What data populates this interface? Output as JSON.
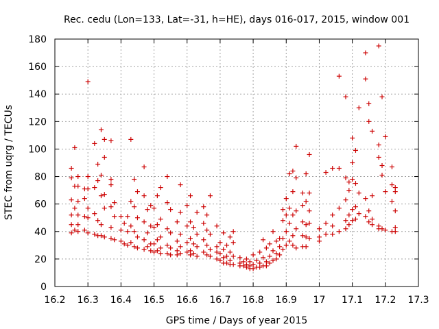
{
  "chart_data": {
    "type": "scatter",
    "title": "Rec. cedu (Lon=133, Lat=-31, h=HE), days 016-017, 2015, window 001",
    "xlabel": "GPS time / Days of year 2015",
    "ylabel": "STEC from uqrg / TECUs",
    "xlim": [
      16.2,
      17.3
    ],
    "ylim": [
      0,
      180
    ],
    "xticks": [
      "16.2",
      "16.3",
      "16.4",
      "16.5",
      "16.6",
      "16.7",
      "16.8",
      "16.9",
      "17",
      "17.1",
      "17.2",
      "17.3"
    ],
    "yticks": [
      "0",
      "20",
      "40",
      "60",
      "80",
      "100",
      "120",
      "140",
      "160",
      "180"
    ],
    "grid": true,
    "marker": "+",
    "color": "#cc0000",
    "series": [
      {
        "points": [
          [
            16.25,
            86
          ],
          [
            16.25,
            79
          ],
          [
            16.25,
            63
          ],
          [
            16.25,
            52
          ],
          [
            16.25,
            45
          ],
          [
            16.25,
            39
          ],
          [
            16.26,
            101
          ],
          [
            16.26,
            73
          ],
          [
            16.26,
            57
          ],
          [
            16.26,
            41
          ],
          [
            16.27,
            80
          ],
          [
            16.27,
            73
          ],
          [
            16.27,
            62
          ],
          [
            16.27,
            52
          ],
          [
            16.27,
            45
          ],
          [
            16.27,
            40
          ],
          [
            16.29,
            71
          ],
          [
            16.29,
            64
          ],
          [
            16.29,
            51
          ],
          [
            16.29,
            41
          ],
          [
            16.3,
            149
          ],
          [
            16.3,
            80
          ],
          [
            16.3,
            71
          ],
          [
            16.3,
            57
          ],
          [
            16.3,
            50
          ],
          [
            16.3,
            39
          ],
          [
            16.32,
            104
          ],
          [
            16.32,
            72
          ],
          [
            16.32,
            53
          ],
          [
            16.32,
            38
          ],
          [
            16.33,
            89
          ],
          [
            16.33,
            77
          ],
          [
            16.33,
            48
          ],
          [
            16.33,
            37
          ],
          [
            16.34,
            114
          ],
          [
            16.34,
            81
          ],
          [
            16.34,
            66
          ],
          [
            16.34,
            45
          ],
          [
            16.34,
            37
          ],
          [
            16.35,
            107
          ],
          [
            16.35,
            94
          ],
          [
            16.35,
            67
          ],
          [
            16.35,
            57
          ],
          [
            16.35,
            36
          ],
          [
            16.37,
            106
          ],
          [
            16.37,
            78
          ],
          [
            16.37,
            74
          ],
          [
            16.37,
            58
          ],
          [
            16.37,
            43
          ],
          [
            16.37,
            35
          ],
          [
            16.38,
            61
          ],
          [
            16.38,
            51
          ],
          [
            16.38,
            34
          ],
          [
            16.4,
            51
          ],
          [
            16.4,
            41
          ],
          [
            16.4,
            33
          ],
          [
            16.41,
            46
          ],
          [
            16.41,
            31
          ],
          [
            16.42,
            51
          ],
          [
            16.42,
            40
          ],
          [
            16.42,
            30
          ],
          [
            16.43,
            107
          ],
          [
            16.43,
            62
          ],
          [
            16.43,
            44
          ],
          [
            16.43,
            32
          ],
          [
            16.44,
            78
          ],
          [
            16.44,
            58
          ],
          [
            16.44,
            40
          ],
          [
            16.44,
            29
          ],
          [
            16.45,
            69
          ],
          [
            16.45,
            50
          ],
          [
            16.45,
            36
          ],
          [
            16.45,
            28
          ],
          [
            16.47,
            87
          ],
          [
            16.47,
            66
          ],
          [
            16.47,
            47
          ],
          [
            16.47,
            34
          ],
          [
            16.47,
            27
          ],
          [
            16.48,
            56
          ],
          [
            16.48,
            39
          ],
          [
            16.48,
            29
          ],
          [
            16.49,
            59
          ],
          [
            16.49,
            44
          ],
          [
            16.49,
            31
          ],
          [
            16.49,
            26
          ],
          [
            16.5,
            57
          ],
          [
            16.5,
            43
          ],
          [
            16.5,
            31
          ],
          [
            16.5,
            25
          ],
          [
            16.51,
            66
          ],
          [
            16.51,
            45
          ],
          [
            16.51,
            34
          ],
          [
            16.51,
            26
          ],
          [
            16.52,
            72
          ],
          [
            16.52,
            49
          ],
          [
            16.52,
            36
          ],
          [
            16.52,
            28
          ],
          [
            16.52,
            24
          ],
          [
            16.54,
            80
          ],
          [
            16.54,
            61
          ],
          [
            16.54,
            42
          ],
          [
            16.54,
            30
          ],
          [
            16.54,
            24
          ],
          [
            16.55,
            56
          ],
          [
            16.55,
            39
          ],
          [
            16.55,
            28
          ],
          [
            16.55,
            23
          ],
          [
            16.57,
            47
          ],
          [
            16.57,
            33
          ],
          [
            16.57,
            26
          ],
          [
            16.57,
            23
          ],
          [
            16.58,
            74
          ],
          [
            16.58,
            54
          ],
          [
            16.58,
            38
          ],
          [
            16.58,
            29
          ],
          [
            16.58,
            24
          ],
          [
            16.6,
            59
          ],
          [
            16.6,
            44
          ],
          [
            16.6,
            32
          ],
          [
            16.6,
            25
          ],
          [
            16.61,
            66
          ],
          [
            16.61,
            47
          ],
          [
            16.61,
            35
          ],
          [
            16.61,
            26
          ],
          [
            16.61,
            23
          ],
          [
            16.62,
            43
          ],
          [
            16.62,
            31
          ],
          [
            16.62,
            24
          ],
          [
            16.63,
            54
          ],
          [
            16.63,
            38
          ],
          [
            16.63,
            29
          ],
          [
            16.63,
            22
          ],
          [
            16.65,
            58
          ],
          [
            16.65,
            46
          ],
          [
            16.65,
            34
          ],
          [
            16.65,
            25
          ],
          [
            16.66,
            52
          ],
          [
            16.66,
            41
          ],
          [
            16.66,
            30
          ],
          [
            16.66,
            23
          ],
          [
            16.67,
            66
          ],
          [
            16.67,
            38
          ],
          [
            16.67,
            27
          ],
          [
            16.67,
            22
          ],
          [
            16.69,
            44
          ],
          [
            16.69,
            29
          ],
          [
            16.69,
            25
          ],
          [
            16.69,
            20
          ],
          [
            16.7,
            32
          ],
          [
            16.7,
            24
          ],
          [
            16.7,
            19
          ],
          [
            16.71,
            39
          ],
          [
            16.71,
            27
          ],
          [
            16.71,
            21
          ],
          [
            16.71,
            17
          ],
          [
            16.72,
            30
          ],
          [
            16.72,
            22
          ],
          [
            16.72,
            17
          ],
          [
            16.73,
            36
          ],
          [
            16.73,
            25
          ],
          [
            16.73,
            19
          ],
          [
            16.73,
            16
          ],
          [
            16.74,
            40
          ],
          [
            16.74,
            32
          ],
          [
            16.74,
            22
          ],
          [
            16.74,
            16
          ],
          [
            16.76,
            21
          ],
          [
            16.76,
            17
          ],
          [
            16.76,
            15
          ],
          [
            16.77,
            18
          ],
          [
            16.77,
            15
          ],
          [
            16.78,
            20
          ],
          [
            16.78,
            16
          ],
          [
            16.78,
            14
          ],
          [
            16.79,
            18
          ],
          [
            16.79,
            15
          ],
          [
            16.79,
            13
          ],
          [
            16.8,
            23
          ],
          [
            16.8,
            16
          ],
          [
            16.8,
            13
          ],
          [
            16.81,
            19
          ],
          [
            16.81,
            14
          ],
          [
            16.82,
            25
          ],
          [
            16.82,
            17
          ],
          [
            16.82,
            14
          ],
          [
            16.83,
            34
          ],
          [
            16.83,
            21
          ],
          [
            16.83,
            15
          ],
          [
            16.84,
            28
          ],
          [
            16.84,
            18
          ],
          [
            16.84,
            15
          ],
          [
            16.85,
            31
          ],
          [
            16.85,
            22
          ],
          [
            16.85,
            17
          ],
          [
            16.86,
            40
          ],
          [
            16.86,
            26
          ],
          [
            16.86,
            19
          ],
          [
            16.87,
            33
          ],
          [
            16.87,
            24
          ],
          [
            16.87,
            20
          ],
          [
            16.88,
            35
          ],
          [
            16.88,
            29
          ],
          [
            16.88,
            23
          ],
          [
            16.89,
            56
          ],
          [
            16.89,
            48
          ],
          [
            16.89,
            35
          ],
          [
            16.89,
            27
          ],
          [
            16.9,
            64
          ],
          [
            16.9,
            52
          ],
          [
            16.9,
            40
          ],
          [
            16.9,
            30
          ],
          [
            16.91,
            82
          ],
          [
            16.91,
            57
          ],
          [
            16.91,
            46
          ],
          [
            16.91,
            33
          ],
          [
            16.92,
            84
          ],
          [
            16.92,
            69
          ],
          [
            16.92,
            52
          ],
          [
            16.92,
            37
          ],
          [
            16.92,
            30
          ],
          [
            16.93,
            102
          ],
          [
            16.93,
            79
          ],
          [
            16.93,
            55
          ],
          [
            16.93,
            42
          ],
          [
            16.93,
            28
          ],
          [
            16.95,
            68
          ],
          [
            16.95,
            59
          ],
          [
            16.95,
            47
          ],
          [
            16.95,
            37
          ],
          [
            16.95,
            29
          ],
          [
            16.96,
            82
          ],
          [
            16.96,
            62
          ],
          [
            16.96,
            45
          ],
          [
            16.96,
            36
          ],
          [
            16.96,
            29
          ],
          [
            16.97,
            96
          ],
          [
            16.97,
            68
          ],
          [
            16.97,
            55
          ],
          [
            16.97,
            46
          ],
          [
            16.97,
            35
          ],
          [
            17.0,
            42
          ],
          [
            17.0,
            36
          ],
          [
            17.0,
            33
          ],
          [
            17.02,
            83
          ],
          [
            17.02,
            46
          ],
          [
            17.02,
            38
          ],
          [
            17.04,
            86
          ],
          [
            17.04,
            52
          ],
          [
            17.04,
            44
          ],
          [
            17.04,
            38
          ],
          [
            17.06,
            153
          ],
          [
            17.06,
            86
          ],
          [
            17.06,
            57
          ],
          [
            17.06,
            40
          ],
          [
            17.08,
            138
          ],
          [
            17.08,
            79
          ],
          [
            17.08,
            63
          ],
          [
            17.08,
            48
          ],
          [
            17.08,
            42
          ],
          [
            17.09,
            76
          ],
          [
            17.09,
            70
          ],
          [
            17.09,
            52
          ],
          [
            17.09,
            45
          ],
          [
            17.1,
            108
          ],
          [
            17.1,
            90
          ],
          [
            17.1,
            78
          ],
          [
            17.1,
            56
          ],
          [
            17.1,
            48
          ],
          [
            17.11,
            99
          ],
          [
            17.11,
            75
          ],
          [
            17.11,
            58
          ],
          [
            17.11,
            49
          ],
          [
            17.12,
            130
          ],
          [
            17.12,
            68
          ],
          [
            17.12,
            53
          ],
          [
            17.14,
            170
          ],
          [
            17.14,
            151
          ],
          [
            17.14,
            64
          ],
          [
            17.14,
            51
          ],
          [
            17.15,
            133
          ],
          [
            17.15,
            120
          ],
          [
            17.15,
            55
          ],
          [
            17.15,
            47
          ],
          [
            17.16,
            113
          ],
          [
            17.16,
            66
          ],
          [
            17.16,
            49
          ],
          [
            17.16,
            45
          ],
          [
            17.18,
            175
          ],
          [
            17.18,
            103
          ],
          [
            17.18,
            94
          ],
          [
            17.18,
            44
          ],
          [
            17.18,
            42
          ],
          [
            17.19,
            138
          ],
          [
            17.19,
            88
          ],
          [
            17.19,
            81
          ],
          [
            17.19,
            42
          ],
          [
            17.2,
            109
          ],
          [
            17.2,
            69
          ],
          [
            17.2,
            41
          ],
          [
            17.22,
            87
          ],
          [
            17.22,
            74
          ],
          [
            17.22,
            62
          ],
          [
            17.22,
            40
          ],
          [
            17.23,
            72
          ],
          [
            17.23,
            69
          ],
          [
            17.23,
            55
          ],
          [
            17.23,
            43
          ],
          [
            17.23,
            40
          ]
        ]
      }
    ]
  }
}
